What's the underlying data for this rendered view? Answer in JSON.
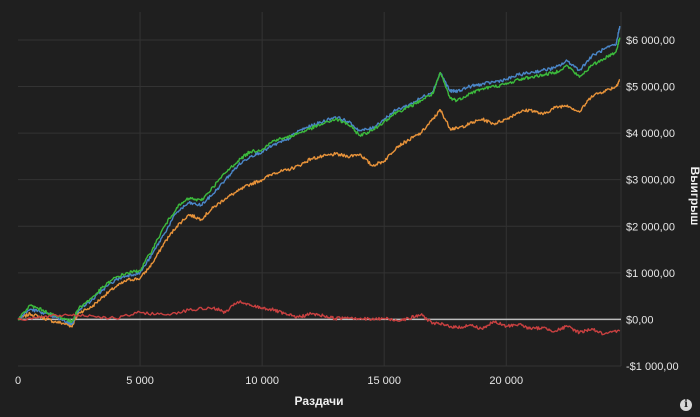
{
  "chart_data": {
    "type": "line",
    "xlabel": "Раздачи",
    "ylabel": "Выигрыш",
    "xlim": [
      0,
      24700
    ],
    "ylim": [
      -1000,
      6600
    ],
    "x_ticks": [
      {
        "value": 0,
        "label": "0"
      },
      {
        "value": 5000,
        "label": "5 000"
      },
      {
        "value": 10000,
        "label": "10 000"
      },
      {
        "value": 15000,
        "label": "15 000"
      },
      {
        "value": 20000,
        "label": "20 000"
      }
    ],
    "y_ticks": [
      {
        "value": 6000,
        "label": "$6 000,00"
      },
      {
        "value": 5000,
        "label": "$5 000,00"
      },
      {
        "value": 4000,
        "label": "$4 000,00"
      },
      {
        "value": 3000,
        "label": "$3 000,00"
      },
      {
        "value": 2000,
        "label": "$2 000,00"
      },
      {
        "value": 1000,
        "label": "$1 000,00"
      },
      {
        "value": 0,
        "label": "$0,00"
      },
      {
        "value": -1000,
        "label": "-$1 000,00"
      }
    ],
    "grid": true,
    "legend": "none",
    "series": [
      {
        "color": "#e8933a",
        "x": [
          0,
          500,
          1000,
          1500,
          2000,
          2200,
          2500,
          3000,
          3500,
          4000,
          4500,
          5000,
          5500,
          6000,
          6500,
          7000,
          7500,
          8000,
          8500,
          9000,
          9500,
          10000,
          10500,
          11000,
          11500,
          12000,
          12500,
          13000,
          13500,
          14000,
          14500,
          15000,
          15500,
          16000,
          16500,
          17000,
          17300,
          17700,
          18000,
          18500,
          19000,
          19500,
          20000,
          20500,
          21000,
          21500,
          22000,
          22500,
          23000,
          23500,
          24000,
          24500,
          24650
        ],
        "values": [
          0,
          120,
          40,
          -50,
          -100,
          -150,
          150,
          260,
          500,
          700,
          850,
          880,
          1200,
          1650,
          2000,
          2250,
          2150,
          2400,
          2600,
          2750,
          2900,
          3000,
          3150,
          3200,
          3300,
          3450,
          3500,
          3550,
          3500,
          3550,
          3300,
          3400,
          3700,
          3850,
          4000,
          4300,
          4500,
          4100,
          4100,
          4200,
          4300,
          4200,
          4300,
          4450,
          4500,
          4400,
          4550,
          4600,
          4450,
          4800,
          4900,
          5000,
          5150
        ]
      },
      {
        "color": "#4a86c8",
        "x": [
          0,
          500,
          1000,
          1500,
          2000,
          2200,
          2500,
          3000,
          3500,
          4000,
          4500,
          5000,
          5500,
          6000,
          6500,
          7000,
          7500,
          8000,
          8500,
          9000,
          9500,
          10000,
          10500,
          11000,
          11500,
          12000,
          12500,
          13000,
          13500,
          14000,
          14500,
          15000,
          15500,
          16000,
          16500,
          17000,
          17300,
          17700,
          18000,
          18500,
          19000,
          19500,
          20000,
          20500,
          21000,
          21500,
          22000,
          22500,
          23000,
          23500,
          24000,
          24500,
          24650
        ],
        "values": [
          0,
          220,
          150,
          50,
          -50,
          -100,
          220,
          400,
          650,
          850,
          950,
          1000,
          1400,
          1850,
          2300,
          2500,
          2450,
          2700,
          3000,
          3300,
          3500,
          3600,
          3750,
          3850,
          4050,
          4150,
          4250,
          4350,
          4250,
          4050,
          4100,
          4300,
          4500,
          4600,
          4750,
          4900,
          5300,
          4900,
          4900,
          5000,
          5050,
          5100,
          5150,
          5250,
          5300,
          5350,
          5400,
          5550,
          5350,
          5650,
          5800,
          5900,
          6300
        ]
      },
      {
        "color": "#3cba3c",
        "x": [
          0,
          500,
          1000,
          1500,
          2000,
          2200,
          2500,
          3000,
          3500,
          4000,
          4500,
          5000,
          5500,
          6000,
          6500,
          7000,
          7500,
          8000,
          8500,
          9000,
          9500,
          10000,
          10500,
          11000,
          11500,
          12000,
          12500,
          13000,
          13500,
          14000,
          14500,
          15000,
          15500,
          16000,
          16500,
          17000,
          17300,
          17700,
          18000,
          18500,
          19000,
          19500,
          20000,
          20500,
          21000,
          21500,
          22000,
          22500,
          23000,
          23500,
          24000,
          24500,
          24650
        ],
        "values": [
          0,
          300,
          200,
          80,
          0,
          -50,
          250,
          450,
          700,
          900,
          1000,
          1050,
          1500,
          2000,
          2400,
          2600,
          2550,
          2850,
          3150,
          3400,
          3600,
          3650,
          3850,
          3900,
          4000,
          4100,
          4200,
          4300,
          4200,
          3950,
          4050,
          4250,
          4450,
          4550,
          4700,
          4850,
          5300,
          4750,
          4700,
          4850,
          4950,
          5000,
          5050,
          5150,
          5200,
          5250,
          5300,
          5450,
          5200,
          5450,
          5600,
          5750,
          6050
        ]
      },
      {
        "color": "#c84040",
        "x": [
          0,
          1000,
          2000,
          3000,
          4000,
          5000,
          6000,
          7000,
          8000,
          8500,
          9000,
          9500,
          10000,
          10500,
          11000,
          11500,
          12000,
          12500,
          13000,
          13500,
          14000,
          14500,
          15000,
          15500,
          16000,
          16500,
          17000,
          17500,
          18000,
          18500,
          19000,
          19500,
          20000,
          20500,
          21000,
          21500,
          22000,
          22500,
          23000,
          23500,
          24000,
          24650
        ],
        "values": [
          0,
          50,
          100,
          80,
          20,
          150,
          100,
          200,
          250,
          150,
          380,
          300,
          250,
          200,
          100,
          50,
          120,
          80,
          20,
          50,
          20,
          0,
          20,
          -20,
          20,
          100,
          -80,
          -120,
          -180,
          -120,
          -200,
          -50,
          -150,
          -100,
          -200,
          -180,
          -250,
          -150,
          -280,
          -200,
          -320,
          -250
        ]
      }
    ]
  },
  "ui": {
    "info_icon": "info-icon",
    "info_glyph": "i"
  }
}
